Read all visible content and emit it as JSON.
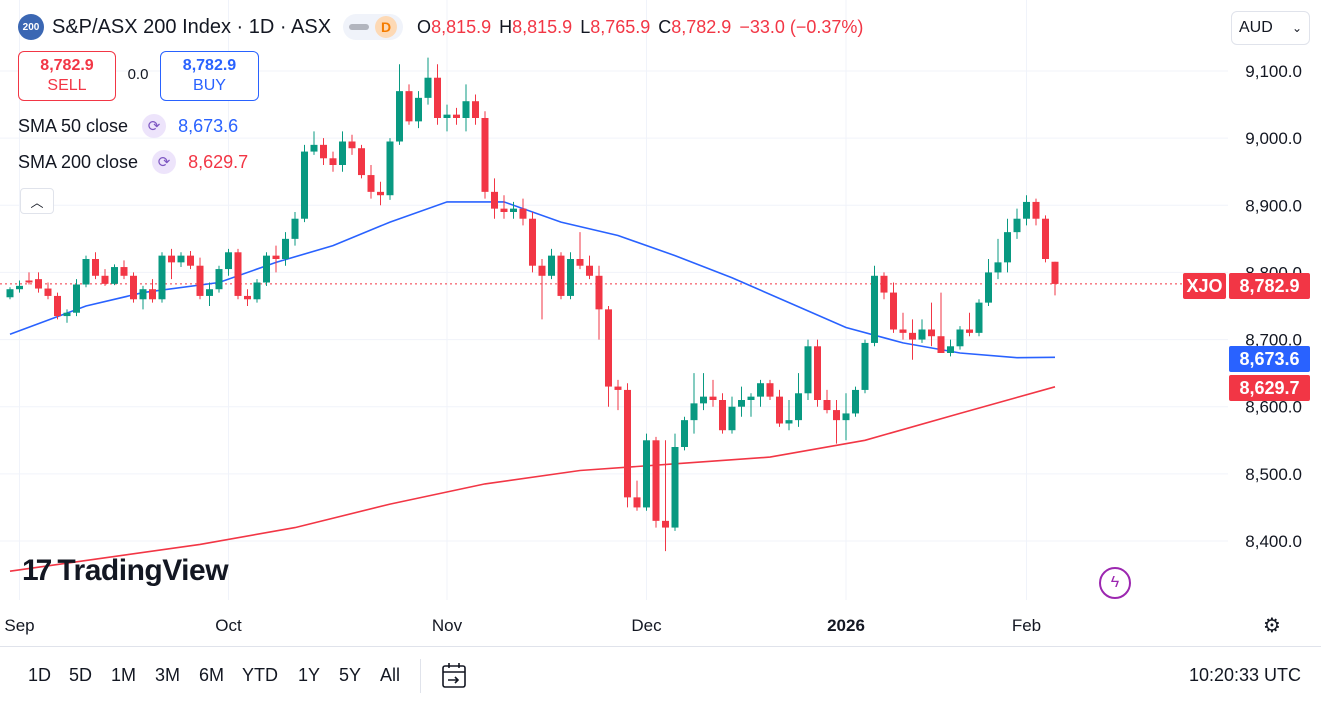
{
  "header": {
    "badge": "200",
    "title": "S&P/ASX 200 Index · 1D · ASX",
    "interval_badge": "D",
    "ohlc": [
      {
        "key": "O",
        "value": "8,815.9"
      },
      {
        "key": "H",
        "value": "8,815.9"
      },
      {
        "key": "L",
        "value": "8,765.9"
      },
      {
        "key": "C",
        "value": "8,782.9"
      }
    ],
    "change": "−33.0 (−0.37%)"
  },
  "trade": {
    "sell_price": "8,782.9",
    "sell_label": "SELL",
    "spread": "0.0",
    "buy_price": "8,782.9",
    "buy_label": "BUY"
  },
  "indicators": [
    {
      "label": "SMA 50 close",
      "value": "8,673.6",
      "color": "#2962ff"
    },
    {
      "label": "SMA 200 close",
      "value": "8,629.7",
      "color": "#f23645"
    }
  ],
  "currency": "AUD",
  "price_tags": {
    "symbol": "XJO",
    "last": "8,782.9",
    "sma50": "8,673.6",
    "sma200": "8,629.7"
  },
  "logo_text": "TradingView",
  "range_buttons": [
    "1D",
    "5D",
    "1M",
    "3M",
    "6M",
    "YTD",
    "1Y",
    "5Y",
    "All"
  ],
  "clock": "10:20:33 UTC",
  "colors": {
    "up": "#089981",
    "down": "#f23645",
    "sma50": "#2962ff",
    "sma200": "#f23645"
  },
  "chart_data": {
    "type": "candlestick",
    "title": "S&P/ASX 200 Index · 1D · ASX",
    "ylim": [
      8340,
      9120
    ],
    "y_ticks": [
      8400,
      8500,
      8600,
      8700,
      8800,
      8900,
      9000,
      9100
    ],
    "y_tick_labels": [
      "8,400.0",
      "8,500.0",
      "8,600.0",
      "8,700.0",
      "8,800.0",
      "8,900.0",
      "9,000.0",
      "9,100.0"
    ],
    "x_tick_labels": [
      {
        "label": "Sep",
        "index": 1
      },
      {
        "label": "Oct",
        "index": 23
      },
      {
        "label": "Nov",
        "index": 46
      },
      {
        "label": "Dec",
        "index": 67
      },
      {
        "label": "2026",
        "index": 88
      },
      {
        "label": "Feb",
        "index": 107
      }
    ],
    "candles": [
      [
        8763,
        8778,
        8760,
        8775
      ],
      [
        8775,
        8788,
        8770,
        8780
      ],
      [
        8788,
        8800,
        8782,
        8785
      ],
      [
        8790,
        8800,
        8770,
        8776
      ],
      [
        8776,
        8785,
        8760,
        8765
      ],
      [
        8765,
        8770,
        8730,
        8735
      ],
      [
        8735,
        8745,
        8725,
        8740
      ],
      [
        8740,
        8790,
        8735,
        8782
      ],
      [
        8782,
        8825,
        8778,
        8820
      ],
      [
        8820,
        8830,
        8790,
        8795
      ],
      [
        8795,
        8805,
        8780,
        8783
      ],
      [
        8783,
        8812,
        8781,
        8808
      ],
      [
        8808,
        8818,
        8790,
        8795
      ],
      [
        8795,
        8800,
        8755,
        8760
      ],
      [
        8760,
        8780,
        8745,
        8775
      ],
      [
        8775,
        8790,
        8755,
        8760
      ],
      [
        8760,
        8830,
        8755,
        8825
      ],
      [
        8825,
        8835,
        8790,
        8815
      ],
      [
        8815,
        8830,
        8808,
        8825
      ],
      [
        8825,
        8832,
        8805,
        8810
      ],
      [
        8810,
        8822,
        8760,
        8765
      ],
      [
        8765,
        8785,
        8750,
        8775
      ],
      [
        8775,
        8810,
        8770,
        8805
      ],
      [
        8805,
        8835,
        8795,
        8830
      ],
      [
        8830,
        8835,
        8760,
        8765
      ],
      [
        8765,
        8775,
        8750,
        8760
      ],
      [
        8760,
        8790,
        8755,
        8785
      ],
      [
        8785,
        8830,
        8780,
        8825
      ],
      [
        8825,
        8840,
        8800,
        8820
      ],
      [
        8820,
        8860,
        8810,
        8850
      ],
      [
        8850,
        8890,
        8840,
        8880
      ],
      [
        8880,
        8990,
        8875,
        8980
      ],
      [
        8980,
        9010,
        8975,
        8990
      ],
      [
        8990,
        9000,
        8960,
        8970
      ],
      [
        8970,
        8980,
        8950,
        8960
      ],
      [
        8960,
        9010,
        8950,
        8995
      ],
      [
        8995,
        9005,
        8975,
        8985
      ],
      [
        8985,
        8990,
        8940,
        8945
      ],
      [
        8945,
        8960,
        8910,
        8920
      ],
      [
        8920,
        8935,
        8900,
        8915
      ],
      [
        8915,
        9000,
        8908,
        8995
      ],
      [
        8995,
        9110,
        8990,
        9070
      ],
      [
        9070,
        9080,
        9020,
        9025
      ],
      [
        9025,
        9070,
        9015,
        9060
      ],
      [
        9060,
        9120,
        9050,
        9090
      ],
      [
        9090,
        9110,
        9020,
        9030
      ],
      [
        9030,
        9050,
        9010,
        9035
      ],
      [
        9035,
        9045,
        9020,
        9030
      ],
      [
        9030,
        9080,
        9010,
        9055
      ],
      [
        9055,
        9065,
        9020,
        9030
      ],
      [
        9030,
        9040,
        8910,
        8920
      ],
      [
        8920,
        8940,
        8880,
        8895
      ],
      [
        8895,
        8915,
        8880,
        8890
      ],
      [
        8890,
        8905,
        8880,
        8895
      ],
      [
        8895,
        8910,
        8870,
        8880
      ],
      [
        8880,
        8890,
        8800,
        8810
      ],
      [
        8810,
        8820,
        8730,
        8795
      ],
      [
        8795,
        8835,
        8790,
        8825
      ],
      [
        8825,
        8830,
        8760,
        8765
      ],
      [
        8765,
        8830,
        8760,
        8820
      ],
      [
        8820,
        8860,
        8805,
        8810
      ],
      [
        8810,
        8825,
        8790,
        8795
      ],
      [
        8795,
        8810,
        8700,
        8745
      ],
      [
        8745,
        8750,
        8600,
        8630
      ],
      [
        8630,
        8640,
        8595,
        8625
      ],
      [
        8625,
        8635,
        8450,
        8465
      ],
      [
        8465,
        8490,
        8445,
        8450
      ],
      [
        8450,
        8560,
        8445,
        8550
      ],
      [
        8550,
        8555,
        8420,
        8430
      ],
      [
        8430,
        8550,
        8385,
        8420
      ],
      [
        8420,
        8560,
        8415,
        8540
      ],
      [
        8540,
        8585,
        8535,
        8580
      ],
      [
        8580,
        8650,
        8560,
        8605
      ],
      [
        8605,
        8650,
        8595,
        8615
      ],
      [
        8615,
        8640,
        8600,
        8610
      ],
      [
        8610,
        8620,
        8560,
        8565
      ],
      [
        8565,
        8615,
        8560,
        8600
      ],
      [
        8600,
        8630,
        8585,
        8610
      ],
      [
        8610,
        8620,
        8585,
        8615
      ],
      [
        8615,
        8640,
        8600,
        8635
      ],
      [
        8635,
        8640,
        8610,
        8615
      ],
      [
        8615,
        8625,
        8570,
        8575
      ],
      [
        8575,
        8610,
        8565,
        8580
      ],
      [
        8580,
        8650,
        8570,
        8620
      ],
      [
        8620,
        8700,
        8610,
        8690
      ],
      [
        8690,
        8700,
        8600,
        8610
      ],
      [
        8610,
        8625,
        8590,
        8595
      ],
      [
        8595,
        8610,
        8545,
        8580
      ],
      [
        8580,
        8620,
        8550,
        8590
      ],
      [
        8590,
        8630,
        8585,
        8625
      ],
      [
        8625,
        8700,
        8620,
        8695
      ],
      [
        8695,
        8810,
        8690,
        8795
      ],
      [
        8795,
        8800,
        8760,
        8770
      ],
      [
        8770,
        8785,
        8710,
        8715
      ],
      [
        8715,
        8740,
        8700,
        8710
      ],
      [
        8710,
        8730,
        8670,
        8700
      ],
      [
        8700,
        8730,
        8695,
        8715
      ],
      [
        8715,
        8755,
        8690,
        8705
      ],
      [
        8705,
        8770,
        8680,
        8680
      ],
      [
        8680,
        8700,
        8675,
        8690
      ],
      [
        8690,
        8720,
        8685,
        8715
      ],
      [
        8715,
        8740,
        8705,
        8710
      ],
      [
        8710,
        8760,
        8705,
        8755
      ],
      [
        8755,
        8820,
        8750,
        8800
      ],
      [
        8800,
        8850,
        8790,
        8815
      ],
      [
        8815,
        8880,
        8800,
        8860
      ],
      [
        8860,
        8895,
        8850,
        8880
      ],
      [
        8880,
        8915,
        8870,
        8905
      ],
      [
        8905,
        8910,
        8870,
        8880
      ],
      [
        8880,
        8885,
        8815,
        8820
      ],
      [
        8815.9,
        8815.9,
        8765.9,
        8782.9
      ]
    ],
    "series": [
      {
        "name": "SMA 50 close",
        "x_index": [
          0,
          8,
          14,
          22,
          28,
          34,
          40,
          46,
          52,
          58,
          64,
          70,
          76,
          82,
          88,
          94,
          100,
          106,
          110
        ],
        "values": [
          8708,
          8750,
          8770,
          8785,
          8815,
          8840,
          8875,
          8905,
          8905,
          8875,
          8855,
          8825,
          8792,
          8755,
          8718,
          8695,
          8680,
          8673,
          8673.6
        ]
      },
      {
        "name": "SMA 200 close",
        "x_index": [
          0,
          10,
          20,
          30,
          40,
          50,
          60,
          70,
          80,
          90,
          100,
          110
        ],
        "values": [
          8355,
          8375,
          8395,
          8420,
          8455,
          8485,
          8505,
          8515,
          8525,
          8550,
          8590,
          8629.7
        ]
      }
    ]
  }
}
